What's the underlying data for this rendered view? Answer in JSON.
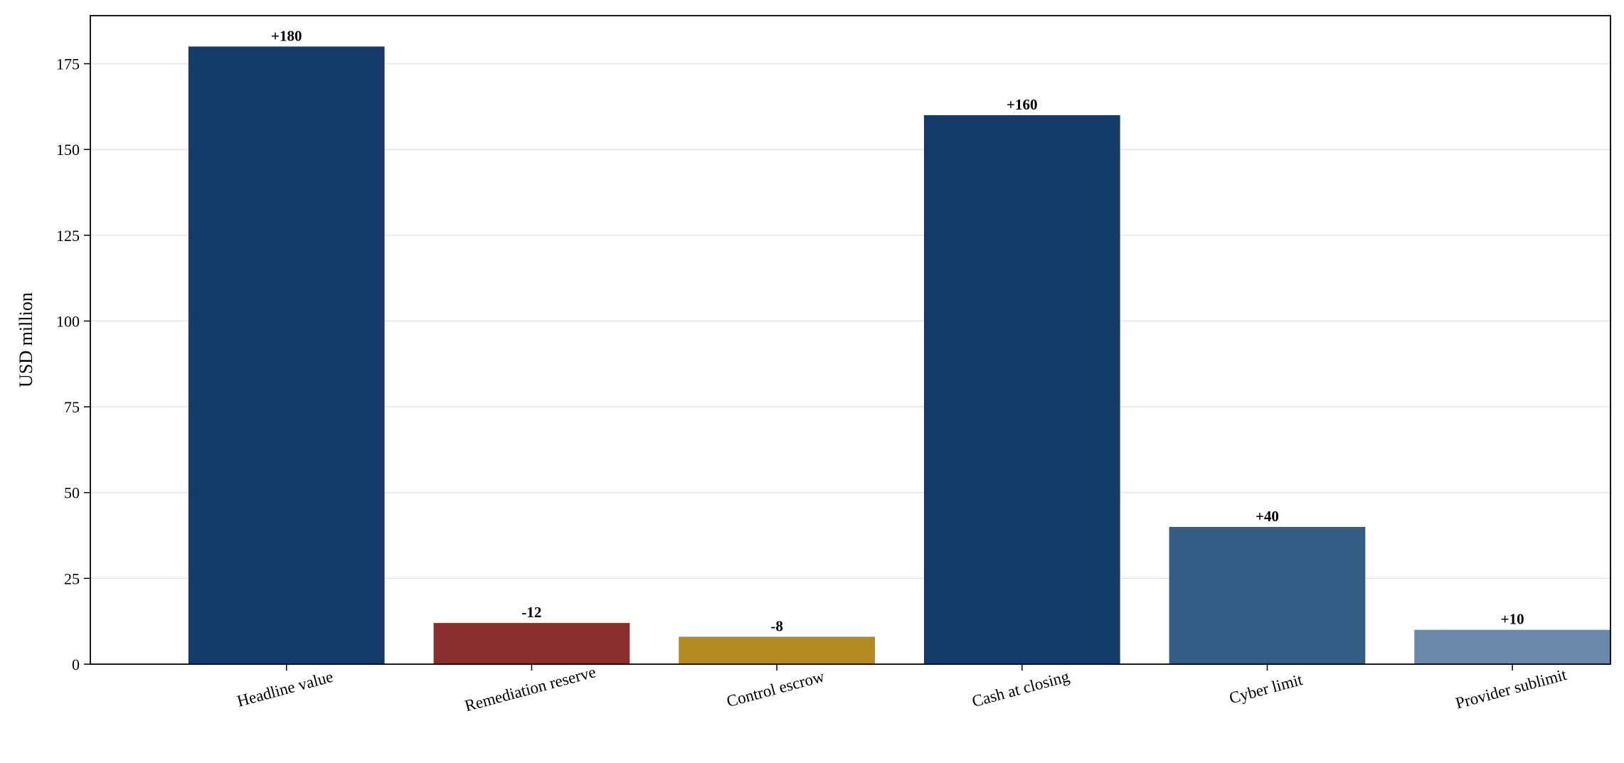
{
  "chart_data": {
    "type": "bar",
    "title": "",
    "xlabel": "",
    "ylabel": "USD million",
    "ylim": [
      0,
      189
    ],
    "yticks": [
      0,
      25,
      50,
      75,
      100,
      125,
      150,
      175
    ],
    "grid": "horizontal",
    "categories": [
      "Headline value",
      "Remediation reserve",
      "Control escrow",
      "Cash at closing",
      "Cyber limit",
      "Provider sublimit"
    ],
    "values": [
      180,
      12,
      8,
      160,
      40,
      10
    ],
    "data_labels": [
      "+180",
      "-12",
      "-8",
      "+160",
      "+40",
      "+10"
    ],
    "bar_colors": [
      "#143b69",
      "#8b2e2e",
      "#b38b22",
      "#143b69",
      "#335d85",
      "#6b89a8"
    ]
  }
}
